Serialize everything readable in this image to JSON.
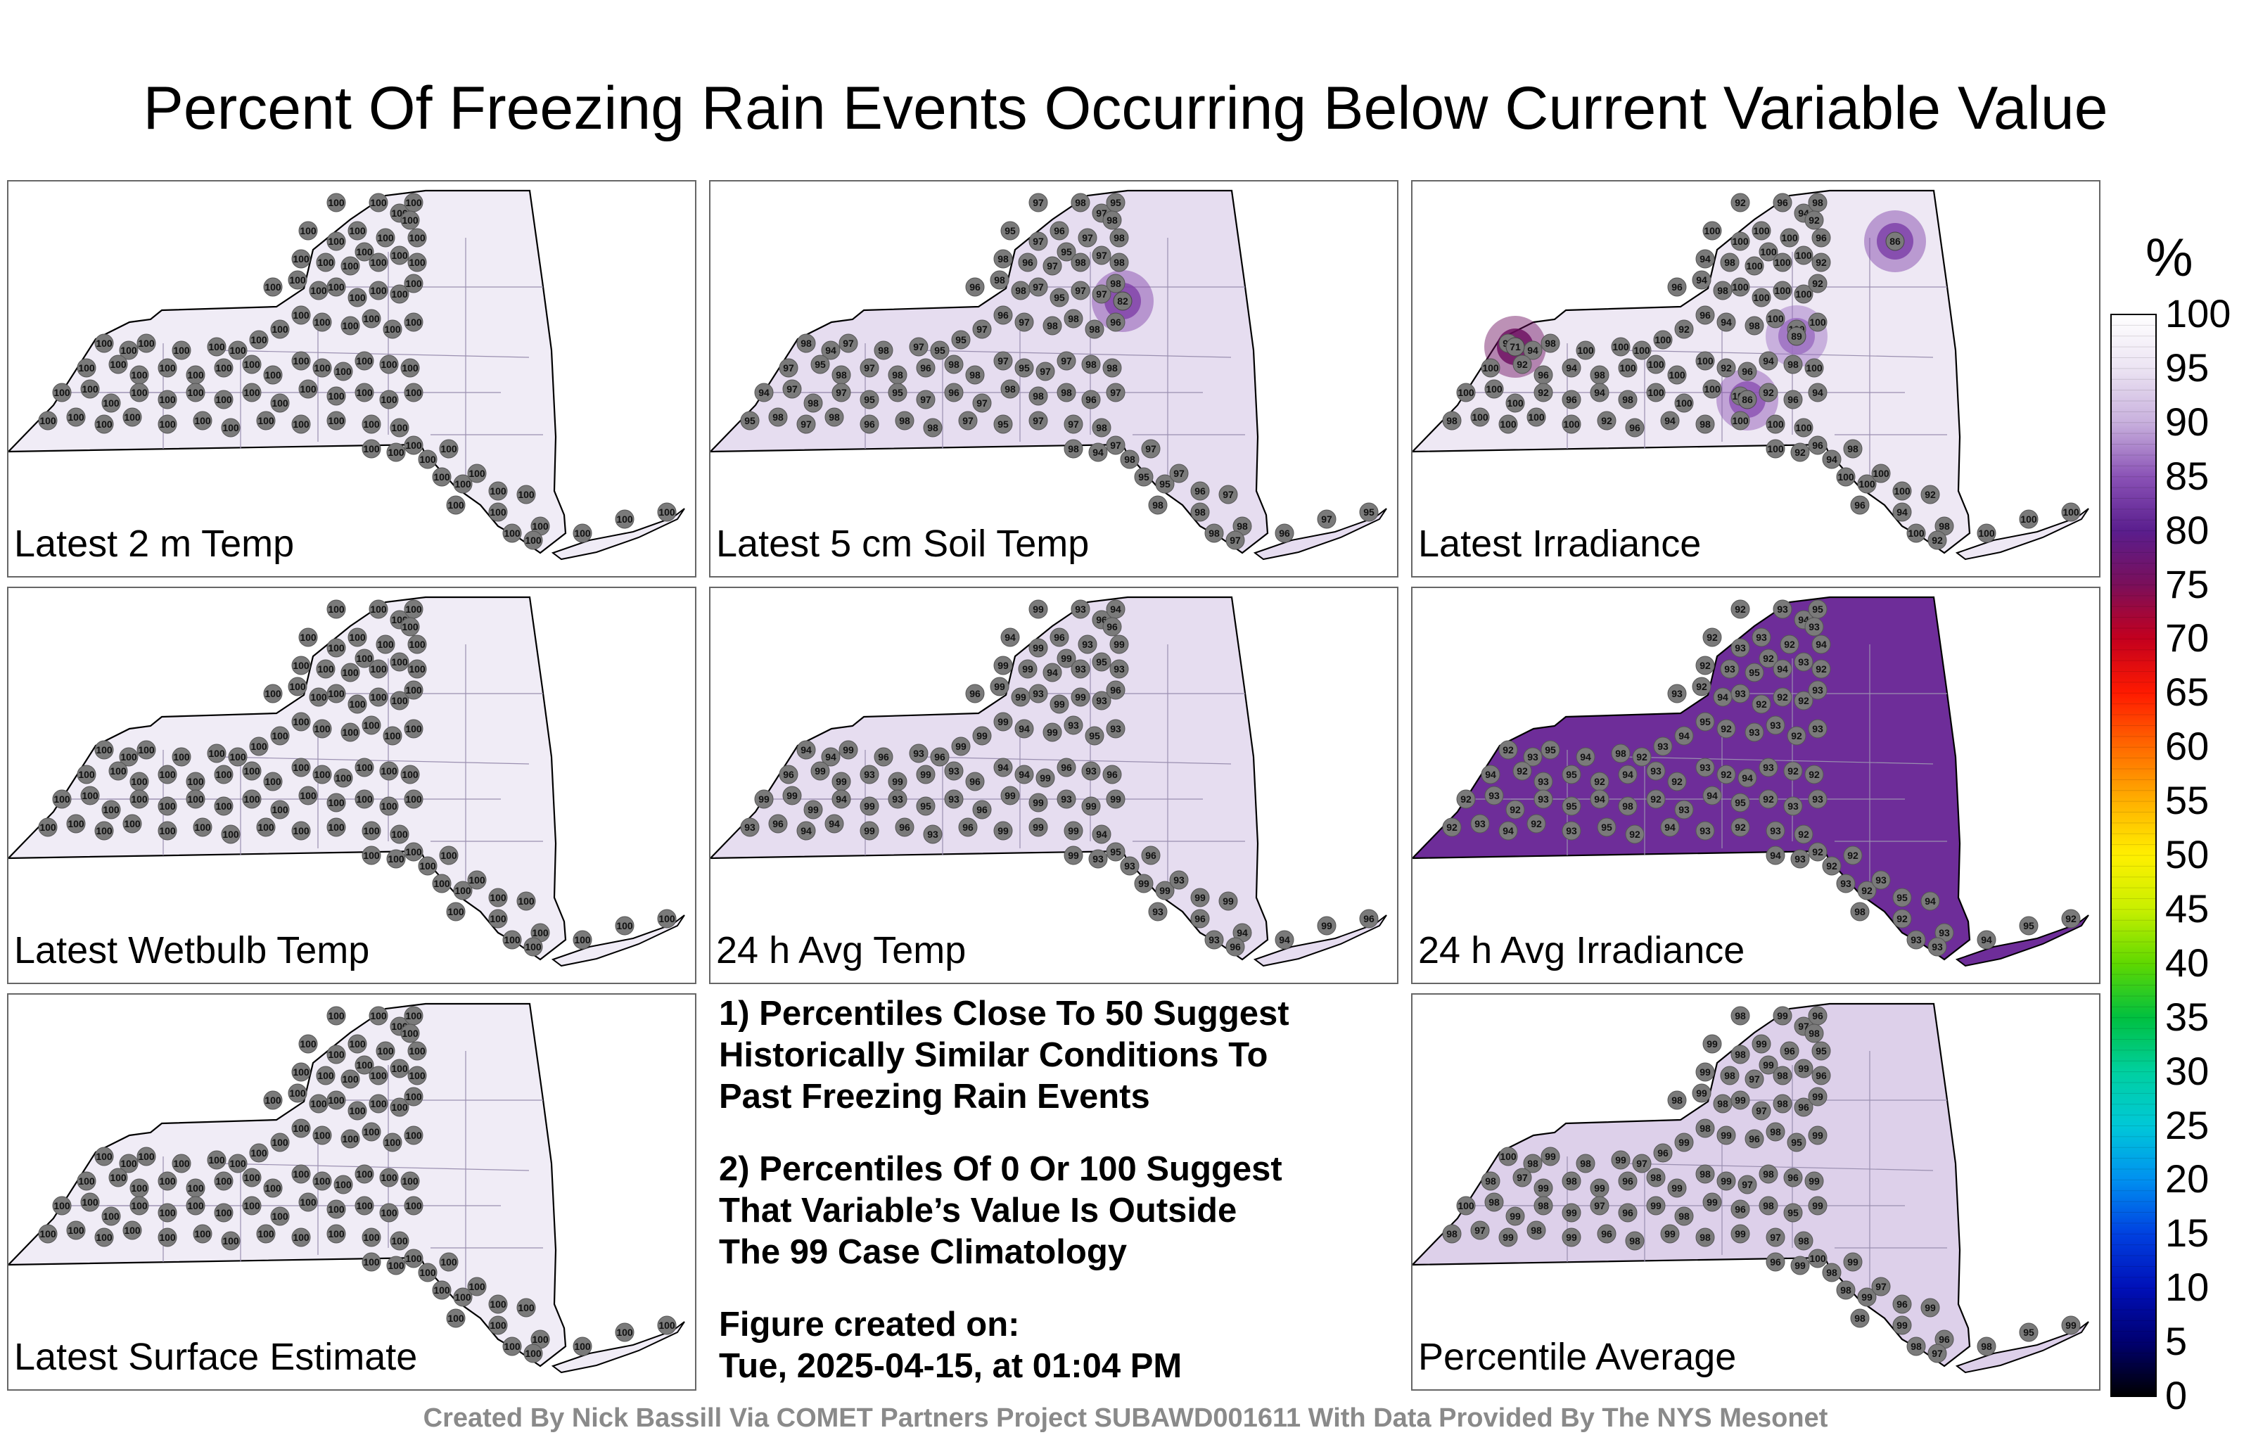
{
  "title": "Percent Of Freezing Rain Events Occurring Below Current Variable Value",
  "panels": [
    {
      "label": "Latest 2 m Temp",
      "shade": "#f0ecf6",
      "hot": [],
      "vals": [
        "100"
      ]
    },
    {
      "label": "Latest 5 cm Soil Temp",
      "shade": "#e6ddf0",
      "hot": [
        {
          "v": "82",
          "c": "#7e3fa6"
        }
      ],
      "vals": [
        "97",
        "98",
        "97",
        "95",
        "95",
        "97",
        "96",
        "97",
        "98",
        "98",
        "98",
        "96",
        "97",
        "95",
        "98",
        "97",
        "98",
        "96",
        "98",
        "98",
        "97",
        "95",
        "97",
        "97",
        "98",
        "98",
        "94"
      ]
    },
    {
      "label": "Latest Irradiance",
      "shade": "#eee8f4",
      "hot": [
        {
          "v": "71",
          "c": "#6a0b5e"
        },
        {
          "v": "86",
          "c": "#7a3ca6"
        },
        {
          "v": "86",
          "c": "#8a4fb2"
        },
        {
          "v": "89",
          "c": "#9a6cc0"
        }
      ],
      "vals": [
        "92",
        "96",
        "94",
        "98",
        "100",
        "100",
        "100",
        "100"
      ]
    },
    {
      "label": "Latest Wetbulb Temp",
      "shade": "#f0ecf6",
      "hot": [],
      "vals": [
        "100"
      ]
    },
    {
      "label": "24 h Avg Temp",
      "shade": "#e6ddf0",
      "hot": [],
      "vals": [
        "99",
        "93",
        "96",
        "94",
        "94",
        "99",
        "96",
        "93",
        "96",
        "99",
        "99",
        "99",
        "94",
        "99",
        "93",
        "95",
        "93",
        "96",
        "99",
        "99",
        "93",
        "99"
      ]
    },
    {
      "label": "24 h Avg Irradiance",
      "shade": "#6e2d99",
      "hot": [],
      "vals": [
        "92",
        "93",
        "94",
        "95",
        "92",
        "93",
        "93",
        "92",
        "93",
        "94",
        "92",
        "93",
        "95",
        "92",
        "94",
        "93",
        "92",
        "93",
        "92",
        "94",
        "93",
        "92",
        "92",
        "92",
        "93",
        "92",
        "93",
        "95",
        "94",
        "98"
      ]
    },
    {
      "label": "Latest Surface Estimate",
      "shade": "#f0ecf6",
      "hot": [],
      "vals": [
        "100"
      ]
    },
    null,
    {
      "label": "Percentile Average",
      "shade": "#ddd0ea",
      "hot": [],
      "vals": [
        "98",
        "99",
        "97",
        "96",
        "99",
        "98",
        "99",
        "96",
        "98",
        "95",
        "99",
        "98",
        "97",
        "99",
        "98",
        "99",
        "96",
        "98",
        "99",
        "98",
        "99",
        "97",
        "98",
        "96",
        "99",
        "100",
        "98",
        "99"
      ]
    }
  ],
  "notes": {
    "note1": [
      "1) Percentiles Close To 50 Suggest",
      "Historically Similar Conditions To",
      "Past Freezing Rain Events"
    ],
    "note2": [
      "2) Percentiles Of 0 Or 100 Suggest",
      "That Variable’s Value Is Outside",
      "The 99 Case Climatology"
    ],
    "note3": [
      "Figure created on:",
      "Tue, 2025-04-15, at 01:04 PM"
    ]
  },
  "colorbar": {
    "label": "%",
    "ticks": [
      "100",
      "95",
      "90",
      "85",
      "80",
      "75",
      "70",
      "65",
      "60",
      "55",
      "50",
      "45",
      "40",
      "35",
      "30",
      "25",
      "20",
      "15",
      "10",
      "5",
      "0"
    ],
    "stops": [
      "#ffffff",
      "#ece4f3",
      "#c8b0dd",
      "#8a52b6",
      "#5a1e8e",
      "#7a0f5a",
      "#c4001e",
      "#ff1a00",
      "#ff6a00",
      "#ffb000",
      "#fff000",
      "#c8f000",
      "#5fd800",
      "#00c040",
      "#00d0a0",
      "#00c8d8",
      "#0090f0",
      "#0040e0",
      "#0010b8",
      "#000070",
      "#000000"
    ]
  },
  "credit": "Created By Nick Bassill Via COMET Partners Project SUBAWD001611 With Data Provided By The NYS Mesonet"
}
